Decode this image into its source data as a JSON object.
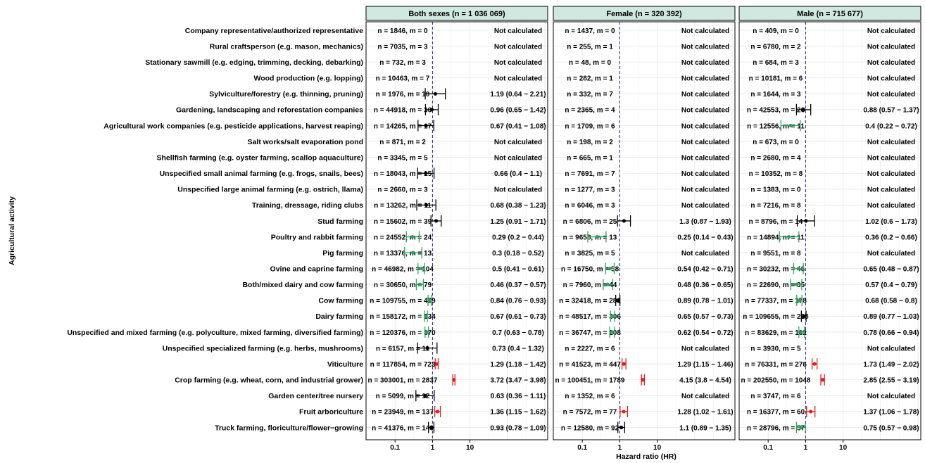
{
  "chart_data": {
    "type": "forest",
    "xlabel": "Hazard ratio (HR)",
    "ylabel": "Agricultural activity",
    "x_scale": "log",
    "x_range": [
      0.02,
      1000
    ],
    "x_ticks": [
      0.1,
      1,
      10
    ],
    "x_tick_labels": [
      "0.1",
      "1",
      "10"
    ],
    "reference_line": 1,
    "grid": true,
    "not_calculated_text": "Not calculated",
    "colors": {
      "significant_lower": "#2ca25f",
      "significant_higher": "#e31a1c",
      "not_significant": "#000000",
      "reference": "#1a1aa6",
      "header_fill": "#cfe9df"
    },
    "categories": [
      "Company representative/authorized representative",
      "Rural craftsperson (e.g. mason, mechanics)",
      "Stationary sawmill (e.g. edging, trimming, decking, debarking)",
      "Wood production (e.g. lopping)",
      "Sylviculture/forestry (e.g. thinning, pruning)",
      "Gardening, landscaping and reforestation companies",
      "Agricultural work companies (e.g. pesticide applications, harvest reaping)",
      "Salt works/salt evaporation pond",
      "Shellfish farming (e.g. oyster farming, scallop aquaculture)",
      "Unspecified small animal farming (e.g. frogs, snails, bees)",
      "Unspecified large animal farming (e.g. ostrich, llama)",
      "Training, dressage, riding clubs",
      "Stud farming",
      "Poultry and rabbit farming",
      "Pig farming",
      "Ovine and caprine farming",
      "Both/mixed dairy and cow farming",
      "Cow farming",
      "Dairy farming",
      "Unspecified and mixed farming (e.g. polyculture, mixed farming, diversified farming)",
      "Unspecified specialized farming (e.g. herbs, mushrooms)",
      "Viticulture",
      "Crop farming (e.g. wheat, corn, and industrial grower)",
      "Garden center/tree nursery",
      "Fruit arboriculture",
      "Truck farming, floriculture/flower−growing"
    ],
    "panels": [
      {
        "title": "Both sexes (n = 1 036 069)",
        "rows": [
          {
            "n_text": "n = 1846, m = 0",
            "hr": null,
            "lo": null,
            "hi": null,
            "hr_text": "Not calculated"
          },
          {
            "n_text": "n = 7035, m = 3",
            "hr": null,
            "lo": null,
            "hi": null,
            "hr_text": "Not calculated"
          },
          {
            "n_text": "n = 732, m = 3",
            "hr": null,
            "lo": null,
            "hi": null,
            "hr_text": "Not calculated"
          },
          {
            "n_text": "n = 10463, m = 7",
            "hr": null,
            "lo": null,
            "hi": null,
            "hr_text": "Not calculated"
          },
          {
            "n_text": "n = 1976, m = 10",
            "hr": 1.19,
            "lo": 0.64,
            "hi": 2.21,
            "hr_text": "1.19 (0.64 − 2.21)"
          },
          {
            "n_text": "n = 44918, m = 30",
            "hr": 0.96,
            "lo": 0.65,
            "hi": 1.42,
            "hr_text": "0.96 (0.65 − 1.42)"
          },
          {
            "n_text": "n = 14265, m = 17",
            "hr": 0.67,
            "lo": 0.41,
            "hi": 1.08,
            "hr_text": "0.67 (0.41 − 1.08)"
          },
          {
            "n_text": "n = 871, m = 2",
            "hr": null,
            "lo": null,
            "hi": null,
            "hr_text": "Not calculated"
          },
          {
            "n_text": "n = 3345, m = 5",
            "hr": null,
            "lo": null,
            "hi": null,
            "hr_text": "Not calculated"
          },
          {
            "n_text": "n = 18043, m = 15",
            "hr": 0.66,
            "lo": 0.4,
            "hi": 1.1,
            "hr_text": "0.66 (0.4 − 1.1)"
          },
          {
            "n_text": "n = 2660, m = 3",
            "hr": null,
            "lo": null,
            "hi": null,
            "hr_text": "Not calculated"
          },
          {
            "n_text": "n = 13262, m = 11",
            "hr": 0.68,
            "lo": 0.38,
            "hi": 1.23,
            "hr_text": "0.68 (0.38 − 1.23)"
          },
          {
            "n_text": "n = 15602, m = 39",
            "hr": 1.25,
            "lo": 0.91,
            "hi": 1.71,
            "hr_text": "1.25 (0.91 − 1.71)"
          },
          {
            "n_text": "n = 24552, m = 24",
            "hr": 0.29,
            "lo": 0.2,
            "hi": 0.44,
            "hr_text": "0.29 (0.2 − 0.44)"
          },
          {
            "n_text": "n = 13376, m = 13",
            "hr": 0.3,
            "lo": 0.18,
            "hi": 0.52,
            "hr_text": "0.3 (0.18 − 0.52)"
          },
          {
            "n_text": "n = 46982, m = 104",
            "hr": 0.5,
            "lo": 0.41,
            "hi": 0.61,
            "hr_text": "0.5 (0.41 − 0.61)"
          },
          {
            "n_text": "n = 30650, m = 79",
            "hr": 0.46,
            "lo": 0.37,
            "hi": 0.57,
            "hr_text": "0.46 (0.37 − 0.57)"
          },
          {
            "n_text": "n = 109755, m = 459",
            "hr": 0.84,
            "lo": 0.76,
            "hi": 0.93,
            "hr_text": "0.84 (0.76 − 0.93)"
          },
          {
            "n_text": "n = 158172, m = 534",
            "hr": 0.67,
            "lo": 0.61,
            "hi": 0.73,
            "hr_text": "0.67 (0.61 − 0.73)"
          },
          {
            "n_text": "n = 120376, m = 370",
            "hr": 0.7,
            "lo": 0.63,
            "hi": 0.78,
            "hr_text": "0.7 (0.63 − 0.78)"
          },
          {
            "n_text": "n = 6157, m = 11",
            "hr": 0.73,
            "lo": 0.4,
            "hi": 1.32,
            "hr_text": "0.73 (0.4 − 1.32)"
          },
          {
            "n_text": "n = 117854, m = 723",
            "hr": 1.29,
            "lo": 1.18,
            "hi": 1.42,
            "hr_text": "1.29 (1.18 − 1.42)"
          },
          {
            "n_text": "n = 303001, m = 2837",
            "hr": 3.72,
            "lo": 3.47,
            "hi": 3.98,
            "hr_text": "3.72 (3.47 − 3.98)"
          },
          {
            "n_text": "n = 5099, m = 12",
            "hr": 0.63,
            "lo": 0.36,
            "hi": 1.11,
            "hr_text": "0.63 (0.36 − 1.11)"
          },
          {
            "n_text": "n = 23949, m = 137",
            "hr": 1.36,
            "lo": 1.15,
            "hi": 1.62,
            "hr_text": "1.36 (1.15 − 1.62)"
          },
          {
            "n_text": "n = 41376, m = 149",
            "hr": 0.93,
            "lo": 0.78,
            "hi": 1.09,
            "hr_text": "0.93 (0.78 − 1.09)"
          }
        ]
      },
      {
        "title": "Female (n = 320 392)",
        "rows": [
          {
            "n_text": "n = 1437, m = 0",
            "hr": null,
            "lo": null,
            "hi": null,
            "hr_text": "Not calculated"
          },
          {
            "n_text": "n = 255, m = 1",
            "hr": null,
            "lo": null,
            "hi": null,
            "hr_text": "Not calculated"
          },
          {
            "n_text": "n = 48, m = 0",
            "hr": null,
            "lo": null,
            "hi": null,
            "hr_text": "Not calculated"
          },
          {
            "n_text": "n = 282, m = 1",
            "hr": null,
            "lo": null,
            "hi": null,
            "hr_text": "Not calculated"
          },
          {
            "n_text": "n = 332, m = 7",
            "hr": null,
            "lo": null,
            "hi": null,
            "hr_text": "Not calculated"
          },
          {
            "n_text": "n = 2365, m = 4",
            "hr": null,
            "lo": null,
            "hi": null,
            "hr_text": "Not calculated"
          },
          {
            "n_text": "n = 1709, m = 6",
            "hr": null,
            "lo": null,
            "hi": null,
            "hr_text": "Not calculated"
          },
          {
            "n_text": "n = 198, m = 2",
            "hr": null,
            "lo": null,
            "hi": null,
            "hr_text": "Not calculated"
          },
          {
            "n_text": "n = 665, m = 1",
            "hr": null,
            "lo": null,
            "hi": null,
            "hr_text": "Not calculated"
          },
          {
            "n_text": "n = 7691, m = 7",
            "hr": null,
            "lo": null,
            "hi": null,
            "hr_text": "Not calculated"
          },
          {
            "n_text": "n = 1277, m = 3",
            "hr": null,
            "lo": null,
            "hi": null,
            "hr_text": "Not calculated"
          },
          {
            "n_text": "n = 6046, m = 3",
            "hr": null,
            "lo": null,
            "hi": null,
            "hr_text": "Not calculated"
          },
          {
            "n_text": "n = 6806, m = 25",
            "hr": 1.3,
            "lo": 0.87,
            "hi": 1.93,
            "hr_text": "1.3 (0.87 − 1.93)"
          },
          {
            "n_text": "n = 9658, m = 13",
            "hr": 0.25,
            "lo": 0.14,
            "hi": 0.43,
            "hr_text": "0.25 (0.14 − 0.43)"
          },
          {
            "n_text": "n = 3825, m = 5",
            "hr": null,
            "lo": null,
            "hi": null,
            "hr_text": "Not calculated"
          },
          {
            "n_text": "n = 16750, m = 58",
            "hr": 0.54,
            "lo": 0.42,
            "hi": 0.71,
            "hr_text": "0.54 (0.42 − 0.71)"
          },
          {
            "n_text": "n = 7960, m = 44",
            "hr": 0.48,
            "lo": 0.36,
            "hi": 0.65,
            "hr_text": "0.48 (0.36 − 0.65)"
          },
          {
            "n_text": "n = 32418, m = 281",
            "hr": 0.89,
            "lo": 0.78,
            "hi": 1.01,
            "hr_text": "0.89 (0.78 − 1.01)"
          },
          {
            "n_text": "n = 48517, m = 306",
            "hr": 0.65,
            "lo": 0.57,
            "hi": 0.73,
            "hr_text": "0.65 (0.57 − 0.73)"
          },
          {
            "n_text": "n = 36747, m = 208",
            "hr": 0.62,
            "lo": 0.54,
            "hi": 0.72,
            "hr_text": "0.62 (0.54 − 0.72)"
          },
          {
            "n_text": "n = 2227, m = 6",
            "hr": null,
            "lo": null,
            "hi": null,
            "hr_text": "Not calculated"
          },
          {
            "n_text": "n = 41523, m = 447",
            "hr": 1.29,
            "lo": 1.15,
            "hi": 1.46,
            "hr_text": "1.29 (1.15 − 1.46)"
          },
          {
            "n_text": "n = 100451, m = 1789",
            "hr": 4.15,
            "lo": 3.8,
            "hi": 4.54,
            "hr_text": "4.15 (3.8 − 4.54)"
          },
          {
            "n_text": "n = 1352, m = 6",
            "hr": null,
            "lo": null,
            "hi": null,
            "hr_text": "Not calculated"
          },
          {
            "n_text": "n = 7572, m = 77",
            "hr": 1.28,
            "lo": 1.02,
            "hi": 1.61,
            "hr_text": "1.28 (1.02 − 1.61)"
          },
          {
            "n_text": "n = 12580, m = 92",
            "hr": 1.1,
            "lo": 0.89,
            "hi": 1.35,
            "hr_text": "1.1 (0.89 − 1.35)"
          }
        ]
      },
      {
        "title": "Male (n = 715 677)",
        "rows": [
          {
            "n_text": "n = 409, m = 0",
            "hr": null,
            "lo": null,
            "hi": null,
            "hr_text": "Not calculated"
          },
          {
            "n_text": "n = 6780, m = 2",
            "hr": null,
            "lo": null,
            "hi": null,
            "hr_text": "Not calculated"
          },
          {
            "n_text": "n = 684, m = 3",
            "hr": null,
            "lo": null,
            "hi": null,
            "hr_text": "Not calculated"
          },
          {
            "n_text": "n = 10181, m = 6",
            "hr": null,
            "lo": null,
            "hi": null,
            "hr_text": "Not calculated"
          },
          {
            "n_text": "n = 1644, m = 3",
            "hr": null,
            "lo": null,
            "hi": null,
            "hr_text": "Not calculated"
          },
          {
            "n_text": "n = 42553, m = 26",
            "hr": 0.88,
            "lo": 0.57,
            "hi": 1.37,
            "hr_text": "0.88 (0.57 − 1.37)"
          },
          {
            "n_text": "n = 12556, m = 11",
            "hr": 0.4,
            "lo": 0.22,
            "hi": 0.72,
            "hr_text": "0.4 (0.22 − 0.72)"
          },
          {
            "n_text": "n = 673, m = 0",
            "hr": null,
            "lo": null,
            "hi": null,
            "hr_text": "Not calculated"
          },
          {
            "n_text": "n = 2680, m = 4",
            "hr": null,
            "lo": null,
            "hi": null,
            "hr_text": "Not calculated"
          },
          {
            "n_text": "n = 10352, m = 8",
            "hr": null,
            "lo": null,
            "hi": null,
            "hr_text": "Not calculated"
          },
          {
            "n_text": "n = 1383, m = 0",
            "hr": null,
            "lo": null,
            "hi": null,
            "hr_text": "Not calculated"
          },
          {
            "n_text": "n = 7216, m = 8",
            "hr": null,
            "lo": null,
            "hi": null,
            "hr_text": "Not calculated"
          },
          {
            "n_text": "n = 8796, m = 14",
            "hr": 1.02,
            "lo": 0.6,
            "hi": 1.73,
            "hr_text": "1.02 (0.6 − 1.73)"
          },
          {
            "n_text": "n = 14894, m = 11",
            "hr": 0.36,
            "lo": 0.2,
            "hi": 0.66,
            "hr_text": "0.36 (0.2 − 0.66)"
          },
          {
            "n_text": "n = 9551, m = 8",
            "hr": null,
            "lo": null,
            "hi": null,
            "hr_text": "Not calculated"
          },
          {
            "n_text": "n = 30232, m = 46",
            "hr": 0.65,
            "lo": 0.48,
            "hi": 0.87,
            "hr_text": "0.65 (0.48 − 0.87)"
          },
          {
            "n_text": "n = 22690, m = 35",
            "hr": 0.57,
            "lo": 0.4,
            "hi": 0.79,
            "hr_text": "0.57 (0.4 − 0.79)"
          },
          {
            "n_text": "n = 77337, m = 178",
            "hr": 0.68,
            "lo": 0.58,
            "hi": 0.8,
            "hr_text": "0.68 (0.58 − 0.8)"
          },
          {
            "n_text": "n = 109655, m = 228",
            "hr": 0.89,
            "lo": 0.77,
            "hi": 1.03,
            "hr_text": "0.89 (0.77 − 1.03)"
          },
          {
            "n_text": "n = 83629, m = 162",
            "hr": 0.78,
            "lo": 0.66,
            "hi": 0.94,
            "hr_text": "0.78 (0.66 − 0.94)"
          },
          {
            "n_text": "n = 3930, m = 5",
            "hr": null,
            "lo": null,
            "hi": null,
            "hr_text": "Not calculated"
          },
          {
            "n_text": "n = 76331, m = 276",
            "hr": 1.73,
            "lo": 1.49,
            "hi": 2.02,
            "hr_text": "1.73 (1.49 − 2.02)"
          },
          {
            "n_text": "n = 202550, m = 1048",
            "hr": 2.85,
            "lo": 2.55,
            "hi": 3.19,
            "hr_text": "2.85 (2.55 − 3.19)"
          },
          {
            "n_text": "n = 3747, m = 6",
            "hr": null,
            "lo": null,
            "hi": null,
            "hr_text": "Not calculated"
          },
          {
            "n_text": "n = 16377, m = 60",
            "hr": 1.37,
            "lo": 1.06,
            "hi": 1.78,
            "hr_text": "1.37 (1.06 − 1.78)"
          },
          {
            "n_text": "n = 28796, m = 57",
            "hr": 0.75,
            "lo": 0.57,
            "hi": 0.98,
            "hr_text": "0.75 (0.57 − 0.98)"
          }
        ]
      }
    ]
  }
}
